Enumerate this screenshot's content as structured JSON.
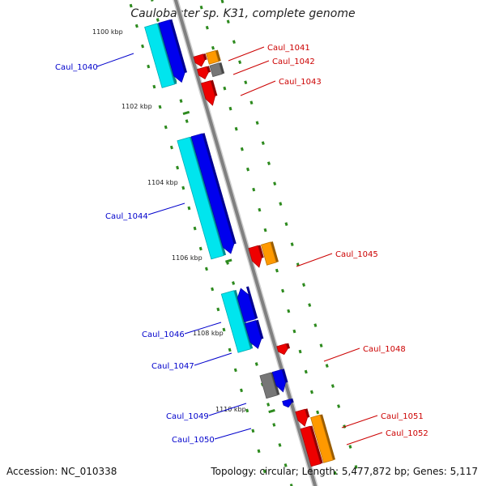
{
  "title": "Caulobacter sp. K31, complete genome",
  "footer": {
    "accession": "Accession: NC_010338",
    "summary": "Topology: circular; Length: 5,477,872 bp; Genes: 5,117"
  },
  "ruler": [
    {
      "label": "1100 kbp"
    },
    {
      "label": "1102 kbp"
    },
    {
      "label": "1104 kbp"
    },
    {
      "label": "1106 kbp"
    },
    {
      "label": "1108 kbp"
    },
    {
      "label": "1110 kbp"
    }
  ],
  "genes": [
    {
      "label": "Caul_1040",
      "color_label": "#0000cc"
    },
    {
      "label": "Caul_1041",
      "color_label": "#cc0000"
    },
    {
      "label": "Caul_1042",
      "color_label": "#cc0000"
    },
    {
      "label": "Caul_1043",
      "color_label": "#cc0000"
    },
    {
      "label": "Caul_1044",
      "color_label": "#0000cc"
    },
    {
      "label": "Caul_1045",
      "color_label": "#cc0000"
    },
    {
      "label": "Caul_1046",
      "color_label": "#0000cc"
    },
    {
      "label": "Caul_1047",
      "color_label": "#0000cc"
    },
    {
      "label": "Caul_1048",
      "color_label": "#cc0000"
    },
    {
      "label": "Caul_1049",
      "color_label": "#0000cc"
    },
    {
      "label": "Caul_1050",
      "color_label": "#0000cc"
    },
    {
      "label": "Caul_1051",
      "color_label": "#cc0000"
    },
    {
      "label": "Caul_1052",
      "color_label": "#cc0000"
    }
  ],
  "colors": {
    "backbone": "#808080",
    "dots": "#2d8a1e",
    "cyan": "#00e5ee",
    "blue": "#0000ee",
    "red": "#ee0000",
    "orange": "#ff9900",
    "gray": "#777777"
  }
}
